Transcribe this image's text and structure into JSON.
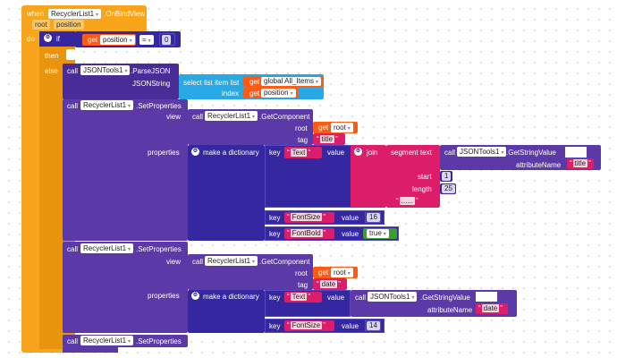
{
  "event": {
    "when": "when",
    "component": "RecyclerList1",
    "event_name": ".OnBindView",
    "param_root": "root",
    "param_position": "position"
  },
  "doif": {
    "do": "do",
    "if": "if",
    "get": "get",
    "position": "position",
    "op": "=",
    "zero": "0",
    "then": "then",
    "else": "else"
  },
  "parse": {
    "call": "call",
    "component": "JSONTools1",
    "method": ".ParseJSON",
    "jsonstring": "JSONString",
    "select": "select list item  list",
    "get": "get",
    "global_items": "global All_Items",
    "index": "index",
    "position": "position"
  },
  "sp1": {
    "call": "call",
    "component": "RecyclerList1",
    "method": ".SetProperties",
    "view": "view",
    "properties": "properties",
    "getcomp": ".GetComponent",
    "root_lbl": "root",
    "get": "get",
    "root": "root",
    "tag_lbl": "tag",
    "tag": "title",
    "make_dict": "make a dictionary",
    "key": "key",
    "key1": "Text",
    "value": "value",
    "join": "join",
    "segment": "segment  text",
    "jt_call": "call",
    "jt_comp": "JSONTools1",
    "jt_method": ".GetStringValue",
    "attr": "attributeName",
    "attr_val": "title",
    "start": "start",
    "start_val": "1",
    "length": "length",
    "length_val": "25",
    "dots": "......",
    "key2": "FontSize",
    "value2": "16",
    "key3": "FontBold",
    "value3": "true"
  },
  "sp2": {
    "call": "call",
    "component": "RecyclerList1",
    "method": ".SetProperties",
    "view": "view",
    "properties": "properties",
    "getcomp": ".GetComponent",
    "root_lbl": "root",
    "get": "get",
    "root": "root",
    "tag_lbl": "tag",
    "tag": "date",
    "make_dict": "make a dictionary",
    "key": "key",
    "key1": "Text",
    "value": "value",
    "jt_call": "call",
    "jt_comp": "JSONTools1",
    "jt_method": ".GetStringValue",
    "attr": "attributeName",
    "attr_val": "date",
    "key2": "FontSize",
    "value2": "14"
  },
  "sp3": {
    "call": "call",
    "component": "RecyclerList1",
    "method": ".SetProperties"
  },
  "colors": {
    "orange": "#f9a51b",
    "purple": "#5b3aa8",
    "navy": "#3527a0",
    "red": "#ff5a14",
    "blue": "#29a8e6",
    "magenta": "#dc1e6a",
    "green": "#3c9e2c"
  }
}
